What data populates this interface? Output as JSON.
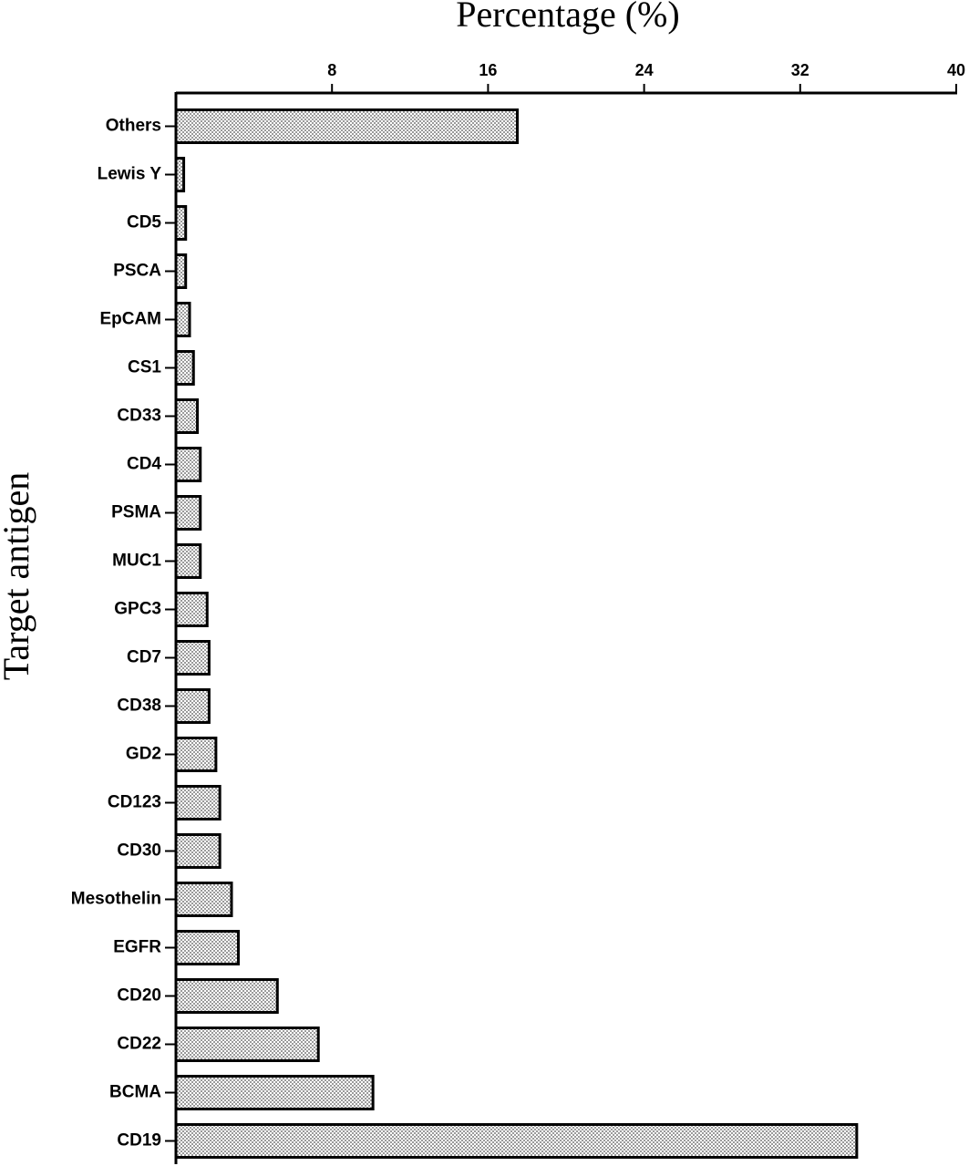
{
  "chart_data": {
    "type": "bar",
    "orientation": "horizontal",
    "title": "Percentage (%)",
    "y_label": "Target antigen",
    "categories": [
      "Others",
      "Lewis Y",
      "CD5",
      "PSCA",
      "EpCAM",
      "CS1",
      "CD33",
      "CD4",
      "PSMA",
      "MUC1",
      "GPC3",
      "CD7",
      "CD38",
      "GD2",
      "CD123",
      "CD30",
      "Mesothelin",
      "EGFR",
      "CD20",
      "CD22",
      "BCMA",
      "CD19"
    ],
    "values": [
      17.5,
      0.4,
      0.5,
      0.5,
      0.7,
      0.9,
      1.1,
      1.25,
      1.25,
      1.25,
      1.6,
      1.7,
      1.7,
      2.05,
      2.25,
      2.25,
      2.85,
      3.2,
      5.2,
      7.3,
      10.1,
      34.9
    ],
    "color": "#9a9a9a",
    "xlim": [
      0,
      40
    ],
    "xticks": [
      8,
      16,
      24,
      32,
      40
    ]
  }
}
